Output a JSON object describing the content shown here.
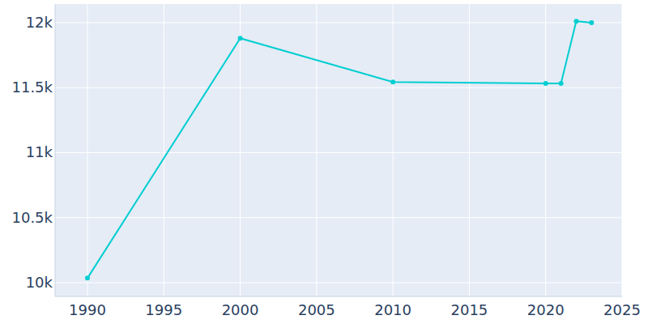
{
  "chart_data": {
    "type": "line",
    "x": [
      1990,
      2000,
      2010,
      2020,
      2021,
      2022,
      2023
    ],
    "values": [
      10035,
      11880,
      11543,
      11532,
      11532,
      12011,
      11999
    ],
    "color": "#00ced1",
    "marker": "circle",
    "xlim": [
      1987.88,
      2025
    ],
    "xticks": [
      1990,
      1995,
      2000,
      2005,
      2010,
      2015,
      2020,
      2025
    ],
    "ylim": [
      9894,
      12143
    ],
    "yticks": [
      {
        "value": 10000,
        "label": "10k"
      },
      {
        "value": 10500,
        "label": "10.5k"
      },
      {
        "value": 11000,
        "label": "11k"
      },
      {
        "value": 11500,
        "label": "11.5k"
      },
      {
        "value": 12000,
        "label": "12k"
      }
    ],
    "grid": true
  }
}
